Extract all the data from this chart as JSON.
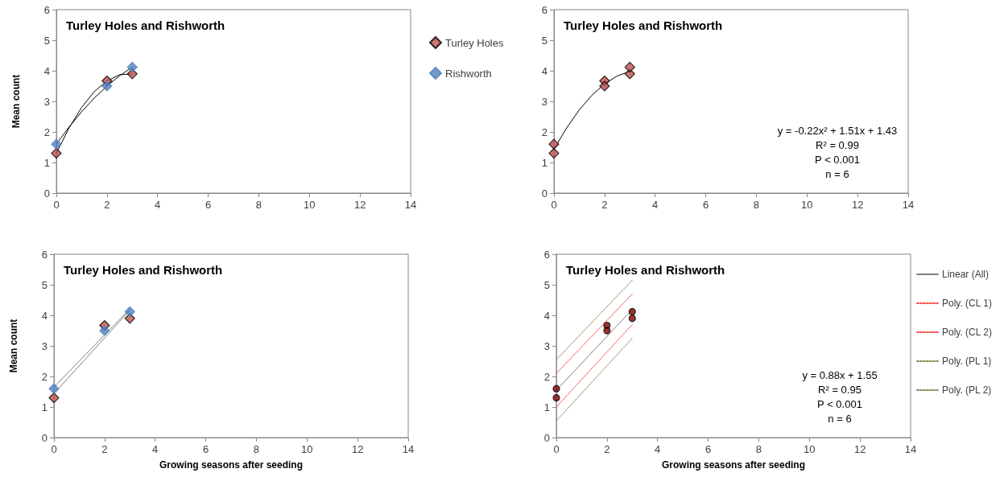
{
  "chart_data": [
    {
      "type": "scatter",
      "title": "Turley Holes and Rishworth",
      "ylabel": "Mean count",
      "xlim": [
        0,
        14
      ],
      "xticks": [
        0,
        2,
        4,
        6,
        8,
        10,
        12,
        14
      ],
      "ylim": [
        0,
        6
      ],
      "yticks": [
        0,
        1,
        2,
        3,
        4,
        5,
        6
      ],
      "grid": false,
      "legend": "right",
      "series": [
        {
          "name": "Turley Holes",
          "color": "#c0504d",
          "marker": "diamond",
          "x": [
            0,
            2,
            3
          ],
          "values": [
            1.3,
            3.67,
            3.9
          ]
        },
        {
          "name": "Rishworth",
          "color": "#4f81bd",
          "marker": "diamond",
          "x": [
            0,
            2,
            3
          ],
          "values": [
            1.6,
            3.5,
            4.12
          ]
        },
        {
          "type": "line",
          "color": "#000000",
          "marker": "none",
          "line_style": "solid",
          "x": [
            0,
            0.5,
            1,
            1.5,
            2,
            2.5,
            3
          ],
          "values": [
            1.3,
            2.13,
            2.8,
            3.32,
            3.67,
            3.87,
            3.9
          ]
        },
        {
          "type": "line",
          "color": "#000000",
          "marker": "none",
          "line_style": "solid",
          "x": [
            0,
            0.5,
            1,
            1.5,
            2,
            2.5,
            3
          ],
          "values": [
            1.6,
            2.16,
            2.66,
            3.11,
            3.5,
            3.84,
            4.12
          ]
        }
      ]
    },
    {
      "type": "scatter",
      "title": "Turley Holes and Rishworth",
      "xlim": [
        0,
        14
      ],
      "xticks": [
        0,
        2,
        4,
        6,
        8,
        10,
        12,
        14
      ],
      "ylim": [
        0,
        6
      ],
      "yticks": [
        0,
        1,
        2,
        3,
        4,
        5,
        6
      ],
      "grid": false,
      "legend": false,
      "annotations": [
        "y = -0.22x² + 1.51x + 1.43",
        "R² = 0.99",
        "P < 0.001",
        "n = 6"
      ],
      "series": [
        {
          "color": "#c0504d",
          "marker": "diamond",
          "x": [
            0,
            0,
            2,
            2,
            3,
            3
          ],
          "values": [
            1.3,
            1.6,
            3.67,
            3.5,
            3.9,
            4.12
          ]
        },
        {
          "type": "line",
          "color": "#000000",
          "marker": "none",
          "line_style": "solid",
          "x": [
            0,
            0.5,
            1,
            1.5,
            2,
            2.5,
            3
          ],
          "values": [
            1.43,
            2.13,
            2.72,
            3.2,
            3.57,
            3.83,
            3.98
          ]
        }
      ]
    },
    {
      "type": "scatter",
      "title": "Turley Holes and Rishworth",
      "xlabel": "Growing seasons after seeding",
      "ylabel": "Mean count",
      "xlim": [
        0,
        14
      ],
      "xticks": [
        0,
        2,
        4,
        6,
        8,
        10,
        12,
        14
      ],
      "ylim": [
        0,
        6
      ],
      "yticks": [
        0,
        1,
        2,
        3,
        4,
        5,
        6
      ],
      "grid": false,
      "legend": false,
      "series": [
        {
          "color": "#c0504d",
          "marker": "diamond",
          "x": [
            0,
            2,
            3
          ],
          "values": [
            1.3,
            3.67,
            3.9
          ]
        },
        {
          "color": "#4f81bd",
          "marker": "diamond",
          "x": [
            0,
            2,
            3
          ],
          "values": [
            1.6,
            3.5,
            4.12
          ]
        },
        {
          "type": "line",
          "color": "#808080",
          "marker": "none",
          "line_style": "solid",
          "x": [
            0,
            3
          ],
          "values": [
            1.44,
            4.17
          ]
        },
        {
          "type": "line",
          "color": "#808080",
          "marker": "none",
          "line_style": "solid",
          "x": [
            0,
            3
          ],
          "values": [
            1.65,
            4.21
          ]
        }
      ]
    },
    {
      "type": "scatter",
      "title": "Turley Holes and Rishworth",
      "xlabel": "Growing seasons after seeding",
      "xlim": [
        0,
        14
      ],
      "xticks": [
        0,
        2,
        4,
        6,
        8,
        10,
        12,
        14
      ],
      "ylim": [
        0,
        6
      ],
      "yticks": [
        0,
        1,
        2,
        3,
        4,
        5,
        6
      ],
      "grid": false,
      "legend": "right",
      "annotations": [
        "y = 0.88x + 1.55",
        "R² = 0.95",
        "P < 0.001",
        "n = 6"
      ],
      "series": [
        {
          "color": "#8b0000",
          "marker": "circle",
          "x": [
            0,
            0,
            2,
            2,
            3,
            3
          ],
          "values": [
            1.3,
            1.6,
            3.67,
            3.5,
            3.9,
            4.12
          ]
        },
        {
          "name": "Linear (All)",
          "type": "line",
          "color": "#808080",
          "marker": "none",
          "line_style": "solid",
          "x": [
            0,
            3
          ],
          "values": [
            1.55,
            4.19
          ]
        },
        {
          "name": "Poly. (CL 1)",
          "type": "line",
          "color": "#ff4d4d",
          "marker": "none",
          "line_style": "dotted",
          "x": [
            0,
            3
          ],
          "values": [
            2.1,
            4.7
          ]
        },
        {
          "name": "Poly. (CL 2)",
          "type": "line",
          "color": "#ff4d4d",
          "marker": "none",
          "line_style": "dotted",
          "x": [
            0,
            3
          ],
          "values": [
            1.0,
            3.7
          ]
        },
        {
          "name": "Poly. (PL 1)",
          "type": "line",
          "color": "#8c8c5a",
          "marker": "none",
          "line_style": "dotted",
          "x": [
            0,
            3
          ],
          "values": [
            2.55,
            5.15
          ]
        },
        {
          "name": "Poly. (PL 2)",
          "type": "line",
          "color": "#8c8c5a",
          "marker": "none",
          "line_style": "dotted",
          "x": [
            0,
            3
          ],
          "values": [
            0.55,
            3.25
          ]
        }
      ]
    }
  ]
}
